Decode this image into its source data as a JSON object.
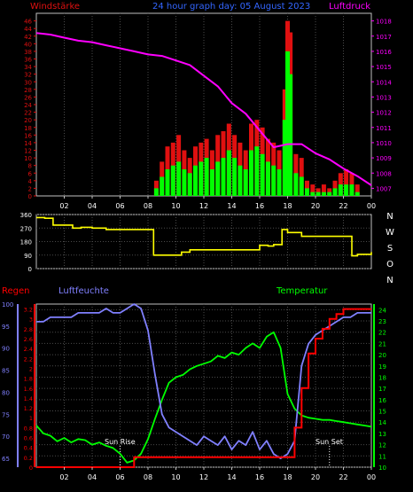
{
  "header": {
    "left_label": "Windstärke",
    "title": "24 hour graph day: 05 August 2023",
    "right_label": "Luftdruck"
  },
  "wind_axis_ticks": [
    "0",
    "2",
    "4",
    "6",
    "8",
    "10",
    "12",
    "14",
    "16",
    "18",
    "20",
    "22",
    "24",
    "26",
    "28",
    "30",
    "32",
    "34",
    "36",
    "38",
    "40",
    "42",
    "44",
    "46"
  ],
  "pressure_axis_ticks": [
    "1007",
    "1008",
    "1009",
    "1010",
    "1011",
    "1012",
    "1013",
    "1014",
    "1015",
    "1016",
    "1017",
    "1018"
  ],
  "time_ticks": [
    "02",
    "04",
    "06",
    "08",
    "10",
    "12",
    "14",
    "16",
    "18",
    "20",
    "22",
    "00"
  ],
  "direction_axis_ticks": [
    "0",
    "90",
    "180",
    "270",
    "360"
  ],
  "direction_labels": [
    "N",
    "W",
    "S",
    "O",
    "N"
  ],
  "bottom_labels": {
    "rain": "Regen",
    "humidity": "Luftfeuchte",
    "temperature": "Temperatur",
    "sun_rise": "Sun Rise",
    "sun_set": "Sun Set"
  },
  "rain_axis_ticks": [
    "0",
    "0.2",
    "0.4",
    "0.6",
    "0.8",
    "1",
    "1.2",
    "1.4",
    "1.6",
    "1.8",
    "2",
    "2.2",
    "2.4",
    "2.6",
    "2.8",
    "3",
    "3.2"
  ],
  "humidity_axis_ticks": [
    "65",
    "70",
    "75",
    "80",
    "85",
    "90",
    "95",
    "100"
  ],
  "temp_axis_ticks": [
    "10",
    "11",
    "12",
    "13",
    "14",
    "15",
    "16",
    "17",
    "18",
    "19",
    "20",
    "21",
    "22",
    "23",
    "24"
  ],
  "colors": {
    "wind_gust": "#e01010",
    "wind_avg": "#00ff00",
    "pressure": "#ff00ff",
    "direction": "#ffff00",
    "rain": "#ff0000",
    "humidity": "#8080ff",
    "temperature": "#00ff00",
    "axis_label_blue": "#3366ff",
    "grid": "#4a4a4a",
    "frame": "#c0c0c0"
  },
  "chart_data": [
    {
      "type": "bar",
      "id": "wind",
      "xlim": [
        0,
        24
      ],
      "ylim": [
        0,
        48
      ],
      "series": [
        {
          "name": "gust",
          "x": [
            8.6,
            9.0,
            9.4,
            9.8,
            10.2,
            10.6,
            11.0,
            11.4,
            11.8,
            12.2,
            12.6,
            13.0,
            13.4,
            13.8,
            14.2,
            14.6,
            15.0,
            15.4,
            15.8,
            16.2,
            16.6,
            17.0,
            17.4,
            17.8,
            18.0,
            18.2,
            18.6,
            19.0,
            19.4,
            19.8,
            20.2,
            20.6,
            21.0,
            21.4,
            21.8,
            22.2,
            22.6,
            23.0
          ],
          "values": [
            4,
            9,
            13,
            14,
            16,
            12,
            10,
            13,
            14,
            15,
            12,
            16,
            17,
            19,
            16,
            14,
            12,
            19,
            20,
            18,
            15,
            14,
            12,
            28,
            46,
            43,
            11,
            10,
            4,
            3,
            2,
            3,
            2,
            4,
            6,
            7,
            6,
            3
          ]
        },
        {
          "name": "avg",
          "x": [
            8.6,
            9.0,
            9.4,
            9.8,
            10.2,
            10.6,
            11.0,
            11.4,
            11.8,
            12.2,
            12.6,
            13.0,
            13.4,
            13.8,
            14.2,
            14.6,
            15.0,
            15.4,
            15.8,
            16.2,
            16.6,
            17.0,
            17.4,
            17.8,
            18.0,
            18.2,
            18.6,
            19.0,
            19.4,
            19.8,
            20.2,
            20.6,
            21.0,
            21.4,
            21.8,
            22.2,
            22.6,
            23.0
          ],
          "values": [
            2,
            5,
            7,
            8,
            9,
            7,
            6,
            8,
            9,
            10,
            7,
            9,
            10,
            12,
            10,
            8,
            7,
            12,
            13,
            11,
            9,
            8,
            7,
            20,
            38,
            32,
            6,
            5,
            2,
            1,
            1,
            1,
            1,
            2,
            3,
            3,
            3,
            1
          ]
        }
      ]
    },
    {
      "type": "line",
      "id": "pressure",
      "name": "Luftdruck",
      "xlim": [
        0,
        24
      ],
      "ylim": [
        1006.5,
        1018.5
      ],
      "x": [
        0,
        1,
        2,
        3,
        4,
        5,
        6,
        7,
        8,
        9,
        10,
        11,
        12,
        13,
        14,
        15,
        16,
        17,
        18,
        19,
        20,
        21,
        22,
        23,
        24
      ],
      "values": [
        1017.2,
        1017.1,
        1016.9,
        1016.7,
        1016.6,
        1016.4,
        1016.2,
        1016.0,
        1015.8,
        1015.7,
        1015.4,
        1015.1,
        1014.4,
        1013.7,
        1012.6,
        1011.9,
        1010.8,
        1009.7,
        1009.9,
        1009.9,
        1009.3,
        1008.9,
        1008.3,
        1007.8,
        1007.2
      ]
    },
    {
      "type": "line",
      "id": "direction",
      "xlim": [
        0,
        24
      ],
      "ylim": [
        0,
        360
      ],
      "x": [
        0,
        0.6,
        1.2,
        1.8,
        2.6,
        3.2,
        4.0,
        5.0,
        6.0,
        7.0,
        7.8,
        8.4,
        9.0,
        10.0,
        10.4,
        11.0,
        12.0,
        13.0,
        14.0,
        15.0,
        16.0,
        16.6,
        17.0,
        17.6,
        18.0,
        19.0,
        20.0,
        21.0,
        22.0,
        22.6,
        23.0,
        24.0
      ],
      "values": [
        340,
        335,
        290,
        290,
        270,
        275,
        270,
        260,
        260,
        260,
        260,
        90,
        90,
        90,
        110,
        125,
        125,
        125,
        125,
        125,
        155,
        150,
        160,
        260,
        240,
        215,
        215,
        215,
        215,
        85,
        95,
        110
      ]
    },
    {
      "type": "line",
      "id": "temperature",
      "name": "Temperatur",
      "xlim": [
        0,
        24
      ],
      "ylim": [
        10,
        24.5
      ],
      "x": [
        0,
        0.5,
        1,
        1.5,
        2,
        2.5,
        3,
        3.5,
        4,
        4.5,
        5,
        5.5,
        6,
        6.5,
        7,
        7.5,
        8,
        8.5,
        9,
        9.5,
        10,
        10.5,
        11,
        11.5,
        12,
        12.5,
        13,
        13.5,
        14,
        14.5,
        15,
        15.5,
        16,
        16.5,
        17,
        17.5,
        18,
        18.5,
        19,
        19.5,
        20,
        20.5,
        21,
        21.5,
        22,
        22.5,
        23,
        23.5,
        24
      ],
      "values": [
        13.7,
        13.0,
        12.8,
        12.3,
        12.6,
        12.2,
        12.5,
        12.4,
        12.0,
        12.2,
        11.9,
        11.7,
        11.2,
        10.4,
        10.6,
        11.2,
        12.5,
        14.3,
        16.0,
        17.5,
        18.0,
        18.2,
        18.7,
        19.0,
        19.2,
        19.4,
        19.9,
        19.7,
        20.2,
        20.0,
        20.6,
        21.0,
        20.6,
        21.6,
        22.0,
        20.6,
        16.5,
        15.2,
        14.6,
        14.4,
        14.3,
        14.2,
        14.2,
        14.1,
        14.0,
        13.9,
        13.8,
        13.7,
        13.6
      ]
    },
    {
      "type": "line",
      "id": "humidity",
      "name": "Luftfeuchte",
      "xlim": [
        0,
        24
      ],
      "ylim": [
        63,
        100
      ],
      "x": [
        0,
        0.5,
        1,
        1.5,
        2,
        2.5,
        3,
        3.5,
        4,
        4.5,
        5,
        5.5,
        6,
        6.5,
        7,
        7.5,
        8,
        8.5,
        9,
        9.5,
        10,
        10.5,
        11,
        11.5,
        12,
        12.5,
        13,
        13.5,
        14,
        14.5,
        15,
        15.5,
        16,
        16.5,
        17,
        17.5,
        18,
        18.5,
        19,
        19.5,
        20,
        20.5,
        21,
        21.5,
        22,
        22.5,
        23,
        23.5,
        24
      ],
      "values": [
        96,
        96,
        97,
        97,
        97,
        97,
        98,
        98,
        98,
        98,
        99,
        98,
        98,
        99,
        100,
        99,
        94,
        84,
        75,
        72,
        71,
        70,
        69,
        68,
        70,
        69,
        68,
        70,
        67,
        69,
        68,
        71,
        67,
        69,
        66,
        65,
        66,
        69,
        86,
        91,
        93,
        94,
        95,
        96,
        97,
        97,
        98,
        98,
        98
      ]
    },
    {
      "type": "line",
      "id": "rain",
      "name": "Regen",
      "xlim": [
        0,
        24
      ],
      "ylim": [
        0,
        3.3
      ],
      "x": [
        0,
        6.5,
        7.0,
        8.0,
        12.0,
        18.0,
        18.5,
        19.0,
        19.5,
        20.0,
        20.5,
        21.0,
        21.5,
        22.0,
        23.0,
        24.0
      ],
      "values": [
        0,
        0,
        0.2,
        0.2,
        0.2,
        0.2,
        0.8,
        1.6,
        2.3,
        2.6,
        2.8,
        3.0,
        3.1,
        3.2,
        3.2,
        3.2
      ]
    }
  ]
}
